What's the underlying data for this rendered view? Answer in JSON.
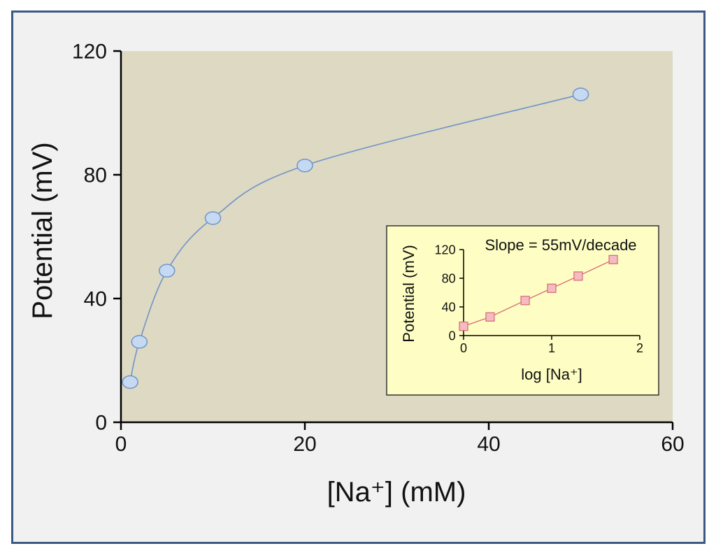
{
  "chart_data": [
    {
      "type": "line",
      "xlabel": "[Na⁺] (mM)",
      "ylabel": "Potential (mV)",
      "xlim": [
        0,
        60
      ],
      "ylim": [
        0,
        120
      ],
      "xticks": [
        0,
        20,
        40,
        60
      ],
      "yticks": [
        0,
        40,
        80,
        120
      ],
      "x": [
        1,
        2,
        5,
        10,
        20,
        50
      ],
      "series": [
        {
          "values": [
            13,
            26,
            49,
            66,
            83,
            106
          ]
        }
      ],
      "marker": "circle",
      "line_color": "#6f94c8",
      "marker_fill": "#c6d9f2",
      "plot_background": "#ddd9c3",
      "grid": false
    },
    {
      "type": "line",
      "inset": true,
      "annotation": "Slope = 55mV/decade",
      "xlabel": "log [Na⁺]",
      "ylabel": "Potential (mV)",
      "xlim": [
        0,
        2
      ],
      "ylim": [
        0,
        120
      ],
      "xticks": [
        0,
        1,
        2
      ],
      "yticks": [
        0,
        40,
        80,
        120
      ],
      "x": [
        0,
        0.301,
        0.699,
        1,
        1.301,
        1.699
      ],
      "series": [
        {
          "values": [
            13,
            26,
            49,
            66,
            83,
            106
          ]
        }
      ],
      "marker": "square",
      "line_color": "#d9707a",
      "marker_fill": "#f4bcc1",
      "panel_background": "#fefec4",
      "grid": false
    }
  ]
}
